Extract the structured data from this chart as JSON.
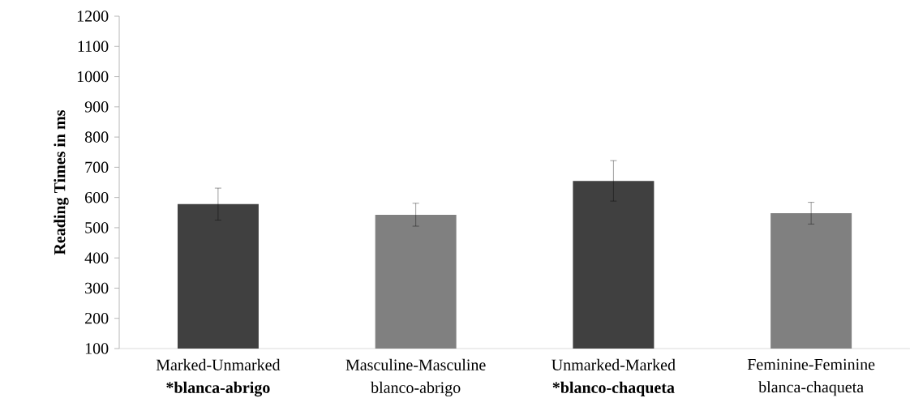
{
  "chart_data": {
    "type": "bar",
    "ylabel": "Reading Times in ms",
    "categories": [
      "Marked-Unmarked ***blanca-abrigo**",
      "Masculine-Masculine blanco-abrigo",
      "Unmarked-Marked ***blanco-chaqueta**",
      "Feminine-Feminine blanca-chaqueta"
    ],
    "values": [
      578,
      543,
      655,
      548
    ],
    "errors": [
      53,
      38,
      67,
      36
    ],
    "colors": [
      "#404040",
      "#808080",
      "#404040",
      "#808080"
    ],
    "ylim": [
      100,
      1200
    ],
    "yticks": [
      100,
      200,
      300,
      400,
      500,
      600,
      700,
      800,
      900,
      1000,
      1100,
      1200
    ],
    "grid": false
  }
}
